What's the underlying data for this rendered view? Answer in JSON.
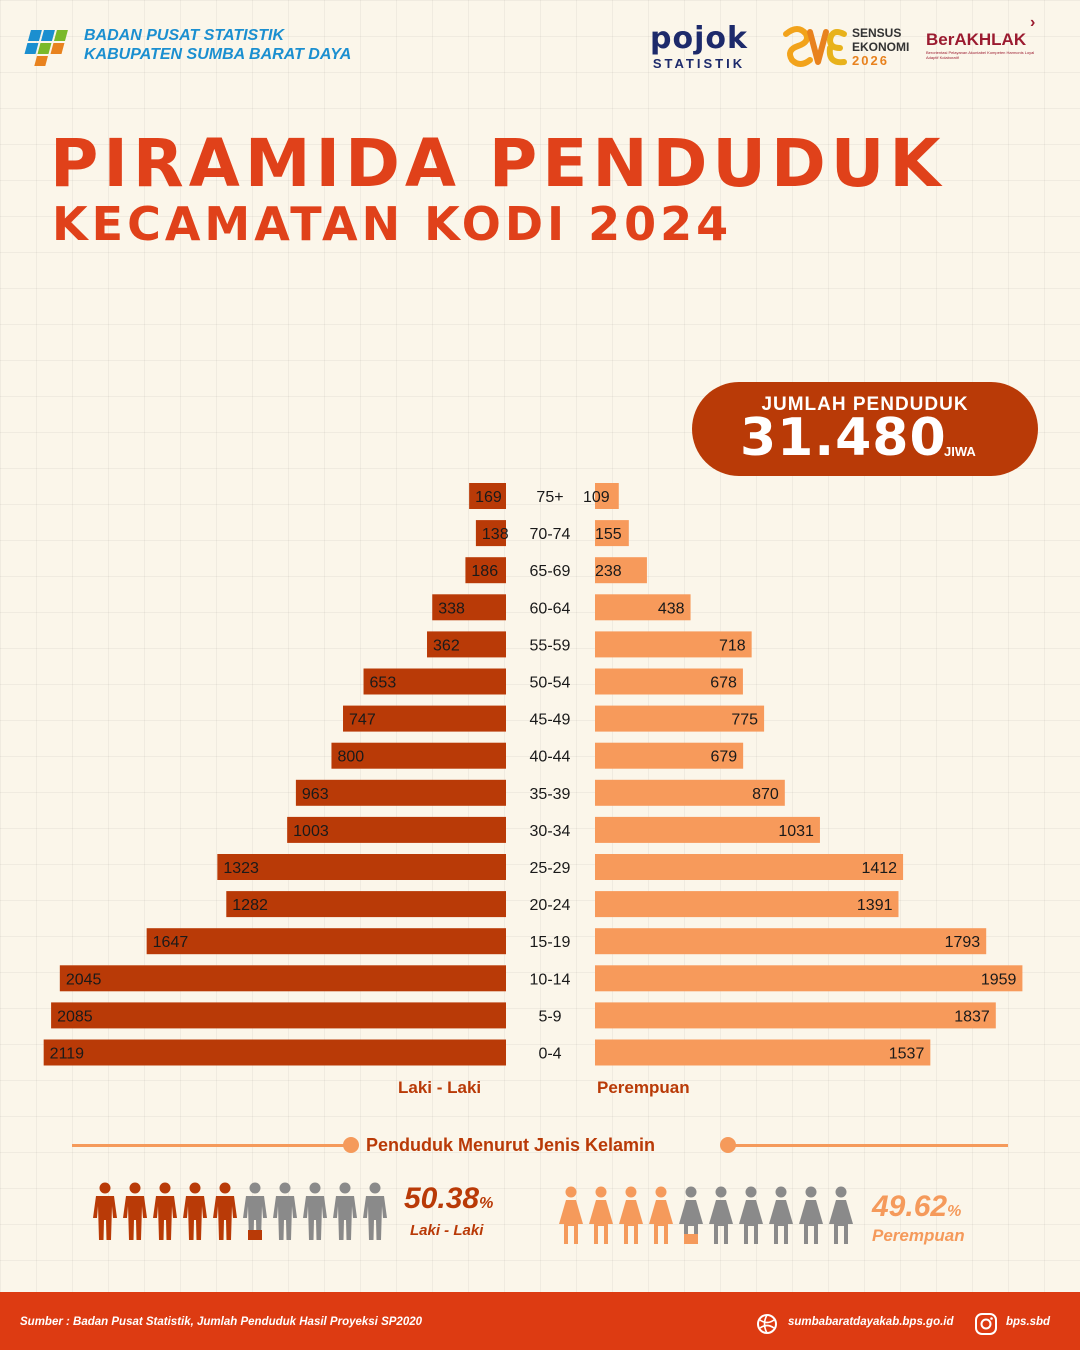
{
  "header": {
    "agency_line1": "BADAN PUSAT STATISTIK",
    "agency_line2": "KABUPATEN SUMBA BARAT DAYA",
    "pojok_word": "pojok",
    "pojok_sub": "STATISTIK",
    "sensus_line1": "SENSUS",
    "sensus_line2": "EKONOMI",
    "sensus_year": "2026",
    "berakhlak": "BerAKHLAK",
    "berakhlak_tagline": "Berorientasi Pelayanan Akuntabel Kompeten Harmonis Loyal Adaptif Kolaboratif"
  },
  "title": {
    "line1": "PIRAMIDA PENDUDUK",
    "line2": "KECAMATAN KODI 2024"
  },
  "total": {
    "label": "JUMLAH PENDUDUK",
    "value": "31.480",
    "unit": "JIWA"
  },
  "chart_data": {
    "type": "bar",
    "orientation": "population-pyramid",
    "categories": [
      "75+",
      "70-74",
      "65-69",
      "60-64",
      "55-59",
      "50-54",
      "45-49",
      "40-44",
      "35-39",
      "30-34",
      "25-29",
      "20-24",
      "15-19",
      "10-14",
      "5-9",
      "0-4"
    ],
    "series": [
      {
        "name": "Laki - Laki",
        "values": [
          169,
          138,
          186,
          338,
          362,
          653,
          747,
          800,
          963,
          1003,
          1323,
          1282,
          1647,
          2045,
          2085,
          2119
        ],
        "color": "#b93a07"
      },
      {
        "name": "Perempuan",
        "values": [
          109,
          155,
          238,
          438,
          718,
          678,
          775,
          679,
          870,
          1031,
          1412,
          1391,
          1793,
          1959,
          1837,
          1537
        ],
        "color": "#f79a5b"
      }
    ],
    "data_labels": true
  },
  "gender": {
    "title": "Penduduk Menurut Jenis Kelamin",
    "male": {
      "pct": "50.38",
      "unit": "%",
      "label": "Laki - Laki",
      "share": 0.5038,
      "color": "#b93a07",
      "icon": "male-person-icon"
    },
    "female": {
      "pct": "49.62",
      "unit": "%",
      "label": "Perempuan",
      "share": 0.4962,
      "color": "#f59a5b",
      "icon": "female-person-icon"
    },
    "inactive_color": "#8a8a8a"
  },
  "footer": {
    "source": "Sumber : Badan Pusat Statistik, Jumlah Penduduk Hasil Proyeksi SP2020",
    "website": "sumbabaratdayakab.bps.go.id",
    "instagram": "bps.sbd"
  }
}
